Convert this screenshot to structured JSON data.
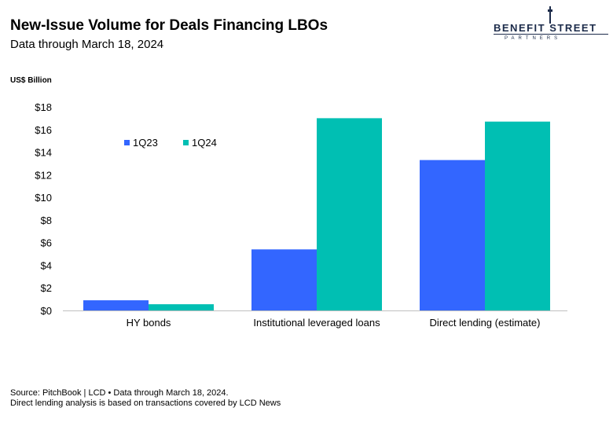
{
  "header": {
    "title": "New-Issue Volume for Deals Financing LBOs",
    "subtitle": "Data through March 18, 2024"
  },
  "logo": {
    "top_text": "BENEFIT STREET",
    "bottom_text": "PARTNERS",
    "color": "#1c2b4a"
  },
  "footer": {
    "line1": "Source: PitchBook | LCD • Data through March 18, 2024.",
    "line2": "Direct lending analysis is based on transactions covered by LCD News"
  },
  "chart_data": {
    "type": "bar",
    "ylabel": "US$ Billion",
    "ylim": [
      0,
      18
    ],
    "yticks": [
      0,
      2,
      4,
      6,
      8,
      10,
      12,
      14,
      16,
      18
    ],
    "ytick_prefix": "$",
    "categories": [
      "HY bonds",
      "Institutional leveraged loans",
      "Direct lending (estimate)"
    ],
    "series": [
      {
        "name": "1Q23",
        "color": "#3366ff",
        "values": [
          0.9,
          5.4,
          13.3
        ]
      },
      {
        "name": "1Q24",
        "color": "#00bfb3",
        "values": [
          0.55,
          17.0,
          16.7
        ]
      }
    ],
    "legend": "top-left",
    "grid": false
  }
}
